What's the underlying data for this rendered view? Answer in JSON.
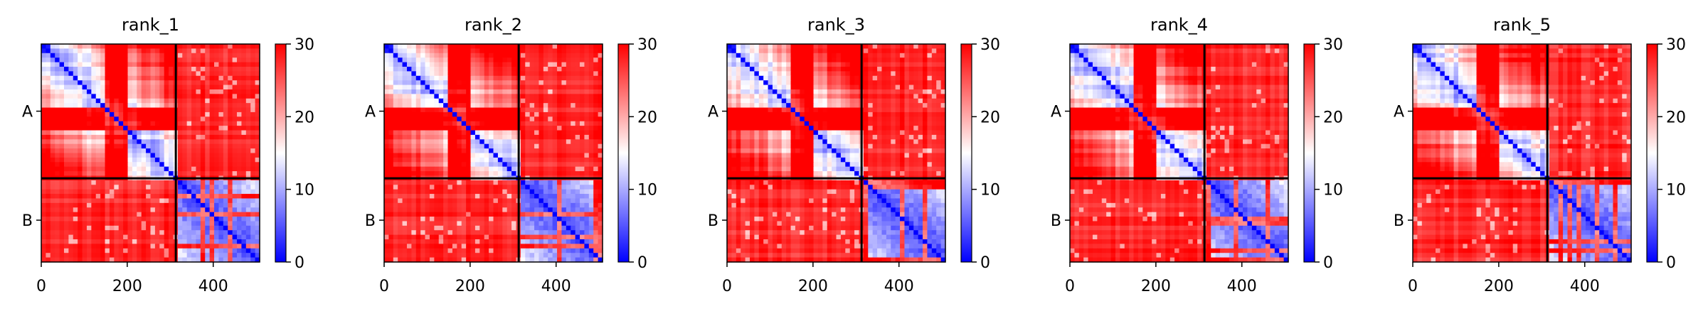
{
  "figure": {
    "background": "#ffffff"
  },
  "chart_data": [
    {
      "type": "heatmap",
      "title": "rank_1",
      "x_ticks": [
        0,
        200,
        400
      ],
      "xlim": [
        0,
        508
      ],
      "chain_labels": [
        "A",
        "B"
      ],
      "chain_boundary": 313,
      "colorbar": {
        "ticks": [
          0,
          10,
          20,
          30
        ],
        "range": [
          0,
          30
        ],
        "colors": [
          "#0000ff",
          "#ffffff",
          "#ff0000"
        ]
      },
      "seed": 11
    },
    {
      "type": "heatmap",
      "title": "rank_2",
      "x_ticks": [
        0,
        200,
        400
      ],
      "xlim": [
        0,
        508
      ],
      "chain_labels": [
        "A",
        "B"
      ],
      "chain_boundary": 313,
      "colorbar": {
        "ticks": [
          0,
          10,
          20,
          30
        ],
        "range": [
          0,
          30
        ],
        "colors": [
          "#0000ff",
          "#ffffff",
          "#ff0000"
        ]
      },
      "seed": 23
    },
    {
      "type": "heatmap",
      "title": "rank_3",
      "x_ticks": [
        0,
        200,
        400
      ],
      "xlim": [
        0,
        508
      ],
      "chain_labels": [
        "A",
        "B"
      ],
      "chain_boundary": 313,
      "colorbar": {
        "ticks": [
          0,
          10,
          20,
          30
        ],
        "range": [
          0,
          30
        ],
        "colors": [
          "#0000ff",
          "#ffffff",
          "#ff0000"
        ]
      },
      "seed": 37
    },
    {
      "type": "heatmap",
      "title": "rank_4",
      "x_ticks": [
        0,
        200,
        400
      ],
      "xlim": [
        0,
        508
      ],
      "chain_labels": [
        "A",
        "B"
      ],
      "chain_boundary": 313,
      "colorbar": {
        "ticks": [
          0,
          10,
          20,
          30
        ],
        "range": [
          0,
          30
        ],
        "colors": [
          "#0000ff",
          "#ffffff",
          "#ff0000"
        ]
      },
      "seed": 41
    },
    {
      "type": "heatmap",
      "title": "rank_5",
      "x_ticks": [
        0,
        200,
        400
      ],
      "xlim": [
        0,
        508
      ],
      "chain_labels": [
        "A",
        "B"
      ],
      "chain_boundary": 313,
      "colorbar": {
        "ticks": [
          0,
          10,
          20,
          30
        ],
        "range": [
          0,
          30
        ],
        "colors": [
          "#0000ff",
          "#ffffff",
          "#ff0000"
        ]
      },
      "seed": 53
    }
  ]
}
